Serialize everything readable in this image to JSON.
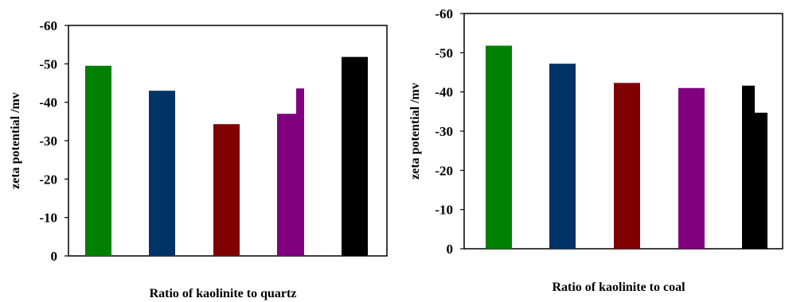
{
  "chart_data": [
    {
      "type": "bar",
      "title": "",
      "xlabel": "Ratio of kaolinite to quartz",
      "ylabel": "zeta potential /mv",
      "ylim": [
        0,
        -60
      ],
      "y_ticks": [
        "-60",
        "-50",
        "-40",
        "-30",
        "-20",
        "-10",
        "0"
      ],
      "y_tick_values": [
        -60,
        -50,
        -40,
        -30,
        -20,
        -10,
        0
      ],
      "grid": false,
      "legend": "none",
      "bars": [
        {
          "value": -49.5,
          "color": "#008000"
        },
        {
          "value": -43.0,
          "color": "#003366"
        },
        {
          "value": -34.3,
          "color": "#800000"
        },
        {
          "value": -37.0,
          "color": "#800080"
        },
        {
          "value": -43.6,
          "color": "#800080"
        },
        {
          "value": -51.8,
          "color": "#000000"
        }
      ]
    },
    {
      "type": "bar",
      "title": "",
      "xlabel": "Ratio of kaolinite to coal",
      "ylabel": "zeta potential /mv",
      "ylim": [
        0,
        -60
      ],
      "y_ticks": [
        "-60",
        "-50",
        "-40",
        "-30",
        "-20",
        "-10",
        "0"
      ],
      "y_tick_values": [
        -60,
        -50,
        -40,
        -30,
        -20,
        -10,
        0
      ],
      "grid": false,
      "legend": "none",
      "bars": [
        {
          "value": -51.8,
          "color": "#008000"
        },
        {
          "value": -47.2,
          "color": "#003366"
        },
        {
          "value": -42.3,
          "color": "#800000"
        },
        {
          "value": -41.0,
          "color": "#800080"
        },
        {
          "value": -41.6,
          "color": "#000000"
        },
        {
          "value": -34.7,
          "color": "#000000"
        }
      ]
    }
  ]
}
